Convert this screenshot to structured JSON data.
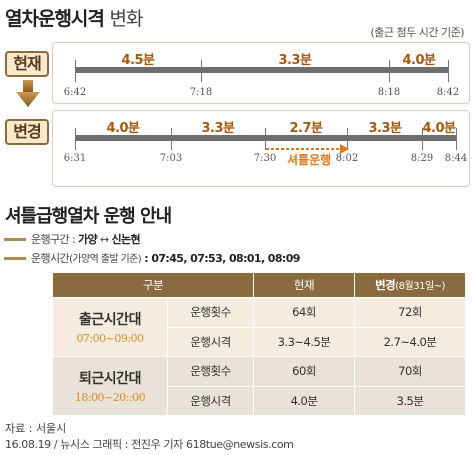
{
  "title": {
    "main": "열차운행시격",
    "suffix": "변화"
  },
  "note_top": "(출근 첨두 시간 기준)",
  "current": {
    "label": "현재",
    "intervals": [
      "4.5분",
      "3.3분",
      "4.0분"
    ],
    "times": [
      "6:42",
      "7:18",
      "8:18",
      "8:42"
    ]
  },
  "changed": {
    "label": "변경",
    "intervals": [
      "4.0분",
      "3.3분",
      "2.7분",
      "3.3분",
      "4.0분"
    ],
    "times": [
      "6:31",
      "7:03",
      "7:30",
      "8:02",
      "8:29",
      "8:44"
    ],
    "shuttle_label": "셔틀운행"
  },
  "section2_title": "셔틀급행열차 운행 안내",
  "info": {
    "route_prefix": "운행구간 : ",
    "route_from": "가양",
    "route_arrow": " ↔ ",
    "route_to": "신논현",
    "time_prefix": "운행시간",
    "time_note": "(가양역 출발 기준)",
    "time_values": " : 07:45, 07:53, 08:01, 08:09"
  },
  "table": {
    "headers": {
      "col1": "구분",
      "col3": "현재",
      "col4_main": "변경",
      "col4_note": "(8월31일~)"
    },
    "groups": [
      {
        "name": "출근시간대",
        "hours": "07:00~09:00",
        "rows": [
          {
            "item": "운행횟수",
            "current": "64회",
            "changed": "72회"
          },
          {
            "item": "운행시격",
            "current": "3.3~4.5분",
            "changed": "2.7~4.0분"
          }
        ]
      },
      {
        "name": "퇴근시간대",
        "hours": "18:00~20::00",
        "rows": [
          {
            "item": "운행횟수",
            "current": "60회",
            "changed": "70회"
          },
          {
            "item": "운행시격",
            "current": "4.0분",
            "changed": "3.5분"
          }
        ]
      }
    ]
  },
  "source": "자료 : 서울시",
  "credit": "16.08.19 / 뉴시스 그래픽 : 전진우 기자 618tue@newsis.com",
  "colors": {
    "accent": "#8a6a3f",
    "orange": "#e07a1a",
    "bar": "#6e6e6e"
  }
}
